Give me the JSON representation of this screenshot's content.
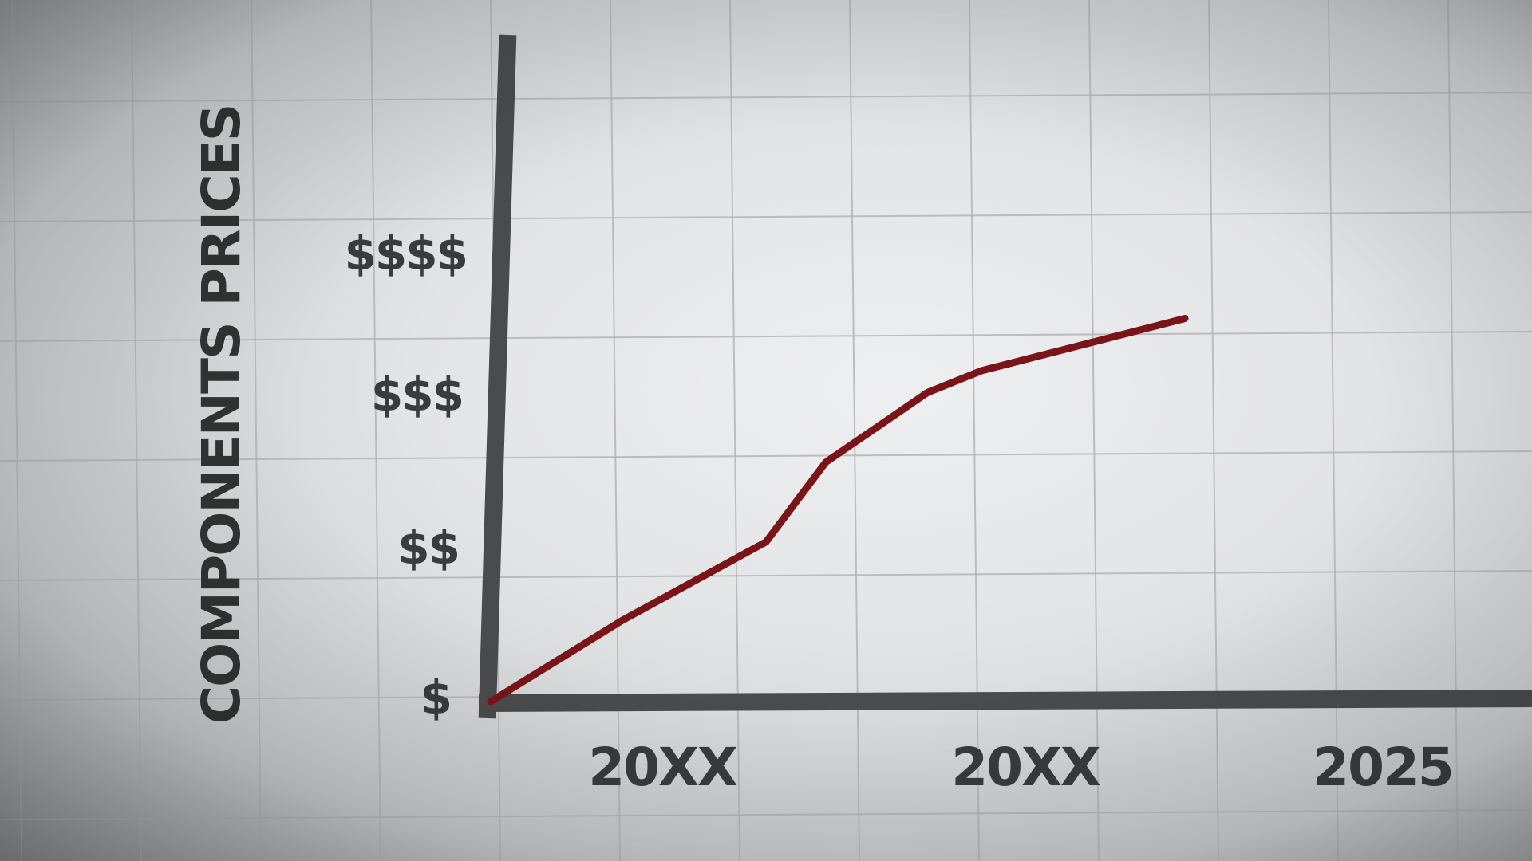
{
  "chart_data": {
    "type": "line",
    "title": "",
    "ylabel": "COMPONENTS PRICES",
    "xlabel": "",
    "y_tick_labels": [
      "$",
      "$$",
      "$$$",
      "$$$$"
    ],
    "x_tick_labels": [
      "20XX",
      "20XX",
      "2025"
    ],
    "x_tick_values": [
      1,
      4,
      7
    ],
    "ylim": [
      0,
      3
    ],
    "xlim": [
      0,
      7.5
    ],
    "grid": true,
    "series": [
      {
        "color": "#7a1418",
        "x": [
          0,
          1.1,
          1.9,
          2.3,
          2.8,
          3.65,
          4.1,
          5.8
        ],
        "y": [
          0,
          0.56,
          0.92,
          1.1,
          1.65,
          2.13,
          2.28,
          2.64
        ]
      }
    ]
  },
  "colors": {
    "background": "#e3e4e6",
    "grid": "#b4b5b7",
    "axis": "#4a4b4c",
    "line": "#7a1418",
    "text": "#3a3b3c"
  }
}
